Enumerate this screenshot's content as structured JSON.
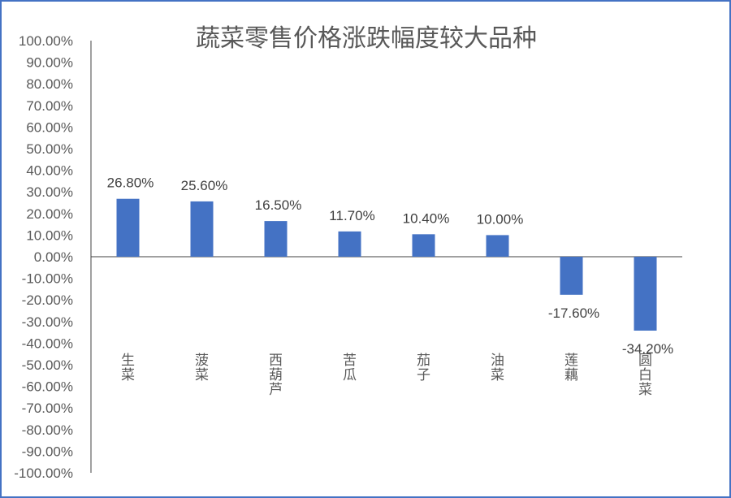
{
  "chart_data": {
    "type": "bar",
    "title": "蔬菜零售价格涨跌幅度较大品种",
    "categories": [
      "生菜",
      "菠菜",
      "西葫芦",
      "苦瓜",
      "茄子",
      "油菜",
      "莲藕",
      "圆白菜"
    ],
    "values": [
      26.8,
      25.6,
      16.5,
      11.7,
      10.4,
      10.0,
      -17.6,
      -34.2
    ],
    "data_labels": [
      "26.80%",
      "25.60%",
      "16.50%",
      "11.70%",
      "10.40%",
      "10.00%",
      "-17.60%",
      "-34.20%"
    ],
    "ylim": [
      -100,
      100
    ],
    "ytick_step": 10,
    "ytick_labels": [
      "100.00%",
      "90.00%",
      "80.00%",
      "70.00%",
      "60.00%",
      "50.00%",
      "40.00%",
      "30.00%",
      "20.00%",
      "10.00%",
      "0.00%",
      "-10.00%",
      "-20.00%",
      "-30.00%",
      "-40.00%",
      "-50.00%",
      "-60.00%",
      "-70.00%",
      "-80.00%",
      "-90.00%",
      "-100.00%"
    ],
    "bar_color": "#4472c4",
    "grid": false,
    "legend": "none"
  }
}
